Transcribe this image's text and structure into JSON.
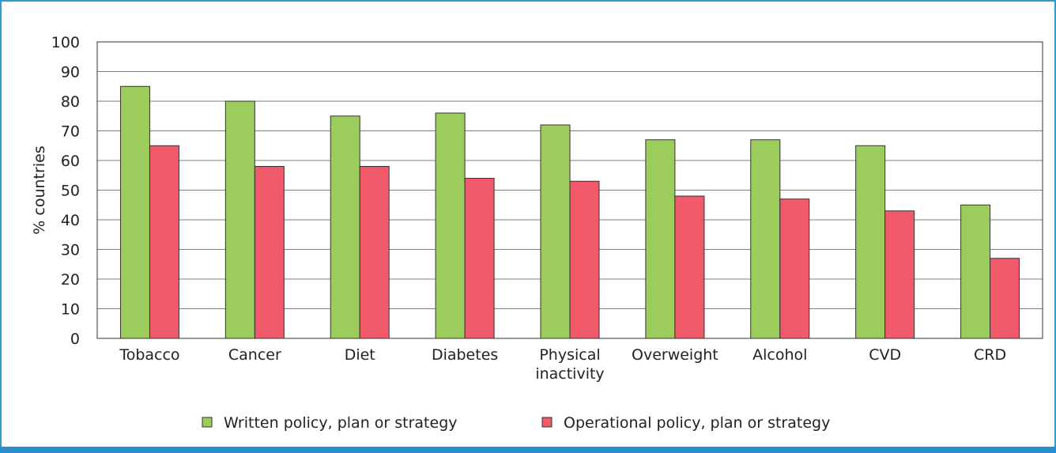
{
  "chart_data": {
    "type": "bar",
    "categories": [
      "Tobacco",
      "Cancer",
      "Diet",
      "Diabetes",
      "Physical inactivity",
      "Overweight",
      "Alcohol",
      "CVD",
      "CRD"
    ],
    "category_lines": [
      [
        "Tobacco"
      ],
      [
        "Cancer"
      ],
      [
        "Diet"
      ],
      [
        "Diabetes"
      ],
      [
        "Physical",
        "inactivity"
      ],
      [
        "Overweight"
      ],
      [
        "Alcohol"
      ],
      [
        "CVD"
      ],
      [
        "CRD"
      ]
    ],
    "series": [
      {
        "name": "Written policy, plan or strategy",
        "values": [
          85,
          80,
          75,
          76,
          72,
          67,
          67,
          65,
          45
        ],
        "color": "#9ccc5c"
      },
      {
        "name": "Operational policy, plan or strategy",
        "values": [
          65,
          58,
          58,
          54,
          53,
          48,
          47,
          43,
          27
        ],
        "color": "#f05a6a"
      }
    ],
    "ylabel": "% countries",
    "ylim": [
      0,
      100
    ],
    "yticks": [
      0,
      10,
      20,
      30,
      40,
      50,
      60,
      70,
      80,
      90,
      100
    ],
    "grid": true,
    "legend_position": "bottom"
  }
}
